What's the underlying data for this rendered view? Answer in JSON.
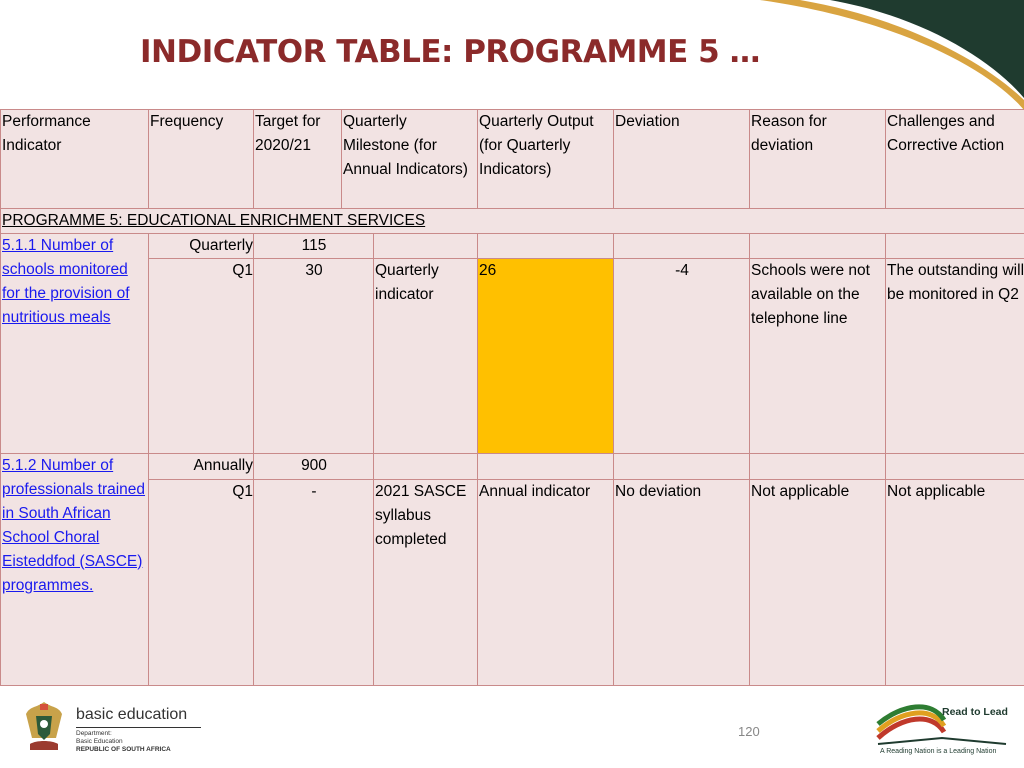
{
  "title": "INDICATOR TABLE: PROGRAMME 5 …",
  "table": {
    "headers": [
      "Performance Indicator",
      "Frequency",
      "Target for 2020/21",
      "Quarterly Milestone (for Annual Indicators)",
      "Quarterly Output (for Quarterly Indicators)",
      "Deviation",
      "Reason for deviation",
      "Challenges and Corrective Action"
    ],
    "section_row": "PROGRAMME 5: EDUCATIONAL ENRICHMENT SERVICES",
    "indicators": [
      {
        "name": "5.1.1 Number of schools monitored for the provision of nutritious meals",
        "frequency": "Quarterly",
        "annual_target": "115",
        "quarter": "Q1",
        "quarter_target": "30",
        "milestone": "Quarterly indicator",
        "output": "26",
        "deviation": "-4",
        "reason": "Schools were not available on the telephone line",
        "challenges": "The outstanding will be monitored in Q2"
      },
      {
        "name": "5.1.2 Number of professionals trained in South African School Choral Eisteddfod (SASCE) programmes.",
        "frequency": "Annually",
        "annual_target": "900",
        "quarter": "Q1",
        "quarter_target": "-",
        "milestone": "2021 SASCE syllabus completed",
        "output": "Annual indicator",
        "deviation": "No deviation",
        "reason": "Not applicable",
        "challenges": "Not applicable"
      }
    ]
  },
  "footer": {
    "department_name": "basic education",
    "department_lines": [
      "Department:",
      "Basic Education",
      "REPUBLIC OF SOUTH AFRICA"
    ],
    "page_number": "120",
    "rtl_title": "Read to Lead",
    "rtl_tagline": "A Reading Nation is a Leading Nation"
  },
  "colors": {
    "title": "#8b2a2a",
    "cell_background": "#f2e3e3",
    "cell_border": "#c98a8a",
    "highlight": "#ffc000",
    "link": "#1a1aee",
    "swoosh_dark": "#1f3b2f",
    "swoosh_gold": "#d9a441"
  }
}
